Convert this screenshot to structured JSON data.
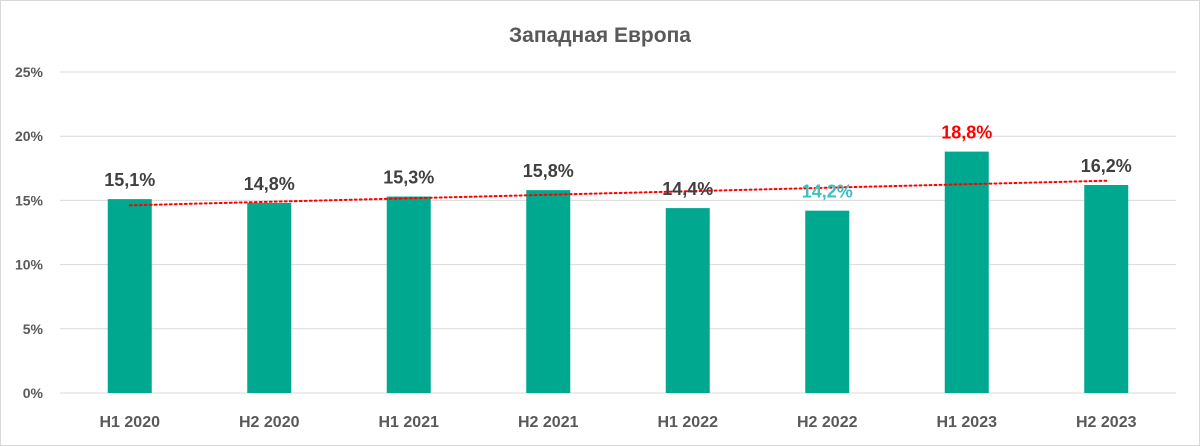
{
  "chart_data": {
    "type": "bar",
    "title": "Западная Европа",
    "categories": [
      "H1 2020",
      "H2 2020",
      "H1 2021",
      "H2 2021",
      "H1 2022",
      "H2 2022",
      "H1 2023",
      "H2 2023"
    ],
    "values": [
      15.1,
      14.8,
      15.3,
      15.8,
      14.4,
      14.2,
      18.8,
      16.2
    ],
    "data_labels": [
      "15,1%",
      "14,8%",
      "15,3%",
      "15,8%",
      "14,4%",
      "14,2%",
      "18,8%",
      "16,2%"
    ],
    "data_label_colors": [
      "#404040",
      "#404040",
      "#404040",
      "#404040",
      "#404040",
      "#3dbfc4",
      "#ff0000",
      "#404040"
    ],
    "ylim": [
      0,
      25
    ],
    "yticks": [
      0,
      5,
      10,
      15,
      20,
      25
    ],
    "ytick_labels": [
      "0%",
      "5%",
      "10%",
      "15%",
      "20%",
      "25%"
    ],
    "xlabel": "",
    "ylabel": "",
    "grid": true,
    "legend": "none",
    "trendline": {
      "type": "linear",
      "color": "#ff0000",
      "style": "dotted"
    },
    "colors": {
      "bar": "#00a88f",
      "title": "#595959",
      "axis_text": "#595959",
      "grid": "#d9d9d9"
    }
  }
}
